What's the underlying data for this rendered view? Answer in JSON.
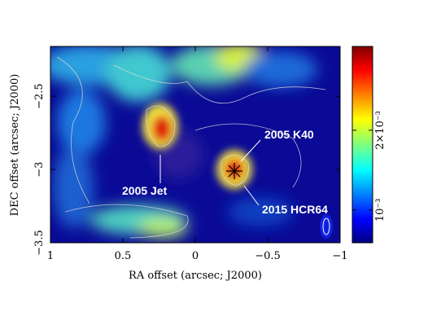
{
  "chart_data": {
    "type": "heatmap",
    "x_label": "RA offset (arcsec; J2000)",
    "y_label": "DEC offset (arcsec; J2000)",
    "xlim": [
      1,
      -1
    ],
    "xticks": [
      1,
      0.5,
      0,
      {
        "value": -0.5,
        "label": "−0.5"
      },
      {
        "value": -1,
        "label": "−1"
      }
    ],
    "ylim": [
      -3.5,
      -2.16
    ],
    "yticks": [
      {
        "value": -2.5,
        "label": "−2.5"
      },
      {
        "value": -3,
        "label": "−3"
      },
      {
        "value": -3.5,
        "label": "−3.5"
      }
    ],
    "colorbar": {
      "lim": [
        0.00059,
        0.00305
      ],
      "colormap": "jet",
      "ticks": [
        {
          "value": 0.001,
          "label": "10⁻³"
        },
        {
          "value": 0.002,
          "label": "2×10⁻³"
        }
      ]
    },
    "annotations": [
      "2005 K40",
      "2005 Jet",
      "2015 HCR64"
    ]
  }
}
